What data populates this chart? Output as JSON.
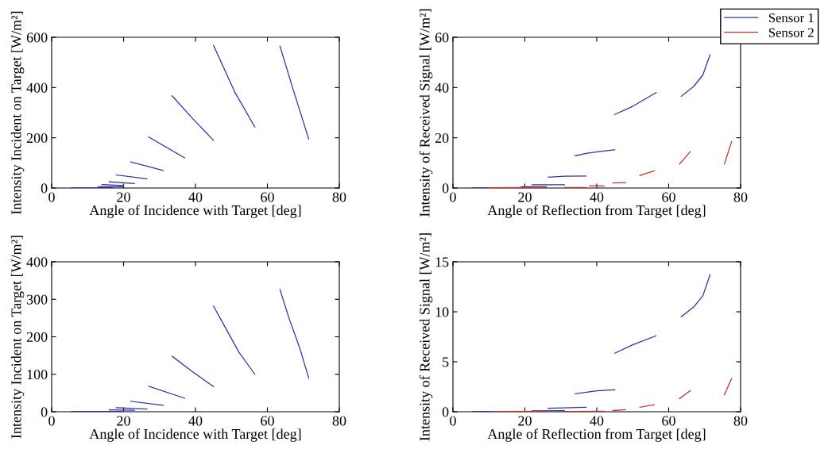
{
  "chart_data": [
    {
      "type": "line",
      "xlabel": "Angle of Incidence with Target [deg]",
      "ylabel": "Intensity Incident on Target [W/m²]",
      "xlim": [
        0,
        80
      ],
      "xticks": [
        0,
        20,
        40,
        60,
        80
      ],
      "ylim": [
        0,
        600
      ],
      "yticks": [
        0,
        200,
        400,
        600
      ],
      "grid": false,
      "legend": false,
      "series": [
        {
          "color": "#3030a0",
          "x": [
            5.5,
            17,
            null,
            13,
            20,
            null,
            14,
            20,
            null,
            16,
            23,
            null,
            18,
            26.5,
            null,
            22,
            31,
            null,
            27,
            37,
            null,
            33.5,
            39,
            45,
            null,
            45,
            51,
            56.5,
            null,
            63.5,
            67,
            71.5
          ],
          "values": [
            1,
            1,
            null,
            5,
            5,
            null,
            14,
            10,
            null,
            25,
            18,
            null,
            52,
            37,
            null,
            104,
            70,
            null,
            203,
            120,
            null,
            367,
            280,
            190,
            null,
            568,
            380,
            243,
            null,
            565,
            400,
            195
          ]
        }
      ]
    },
    {
      "type": "line",
      "xlabel": "Angle of Reflection from Target [deg]",
      "ylabel": "Intensity of Received Signal [W/m²]",
      "xlim": [
        0,
        80
      ],
      "xticks": [
        0,
        20,
        40,
        60,
        80
      ],
      "ylim": [
        0,
        60
      ],
      "yticks": [
        0,
        20,
        40,
        60
      ],
      "grid": false,
      "legend": "top right",
      "series": [
        {
          "name": "Sensor 1",
          "color": "#3030a0",
          "x": [
            5.5,
            11,
            null,
            19,
            26,
            null,
            22,
            31,
            null,
            26.5,
            31,
            37,
            null,
            34,
            37,
            41,
            45,
            null,
            45,
            50,
            56.5,
            null,
            63.5,
            67,
            69.5,
            71.5
          ],
          "values": [
            0.1,
            0.1,
            null,
            0.5,
            0.5,
            null,
            1.3,
            1.3,
            null,
            4.3,
            4.7,
            4.8,
            null,
            12.8,
            13.8,
            14.6,
            15.2,
            null,
            29.3,
            32.5,
            38,
            null,
            36.5,
            40.5,
            45,
            53
          ]
        },
        {
          "name": "Sensor 2",
          "color": "#c03030",
          "x": [
            10,
            26,
            null,
            31,
            37,
            null,
            38,
            42,
            null,
            44.5,
            48,
            null,
            52,
            56,
            null,
            63,
            66,
            null,
            75.5,
            77.5
          ],
          "values": [
            0.1,
            0.3,
            null,
            0.2,
            0.2,
            null,
            0.9,
            0.8,
            null,
            2,
            2.2,
            null,
            5,
            6.8,
            null,
            9.5,
            14.5,
            null,
            9.5,
            18.5
          ]
        }
      ]
    },
    {
      "type": "line",
      "xlabel": "Angle of Incidence with Target [deg]",
      "ylabel": "Intensity Incident on Target [W/m²]",
      "xlim": [
        0,
        80
      ],
      "xticks": [
        0,
        20,
        40,
        60,
        80
      ],
      "ylim": [
        0,
        400
      ],
      "yticks": [
        0,
        100,
        200,
        300,
        400
      ],
      "grid": false,
      "legend": false,
      "series": [
        {
          "color": "#3030a0",
          "x": [
            5.5,
            20,
            null,
            16,
            23,
            null,
            18,
            26.5,
            null,
            22,
            31,
            null,
            27,
            37,
            null,
            33.5,
            39,
            45,
            null,
            45,
            48,
            52,
            56.5,
            null,
            63.5,
            66,
            69,
            71.5
          ],
          "values": [
            1,
            1,
            null,
            5,
            4,
            null,
            11,
            7,
            null,
            28,
            17,
            null,
            68,
            36,
            null,
            148,
            108,
            67,
            null,
            282,
            230,
            160,
            100,
            null,
            326,
            250,
            170,
            90
          ]
        }
      ]
    },
    {
      "type": "line",
      "xlabel": "Angle of Reflection from Target [deg]",
      "ylabel": "Intensity of Received Signal [W/m²]",
      "xlim": [
        0,
        80
      ],
      "xticks": [
        0,
        20,
        40,
        60,
        80
      ],
      "ylim": [
        0,
        15
      ],
      "yticks": [
        0,
        5,
        10,
        15
      ],
      "grid": false,
      "legend": false,
      "series": [
        {
          "color": "#3030a0",
          "x": [
            5.5,
            11,
            null,
            22,
            31,
            null,
            26.5,
            37,
            null,
            34,
            40,
            45,
            null,
            45,
            50,
            56.5,
            null,
            63.5,
            67,
            69.5,
            71.5
          ],
          "values": [
            0.02,
            0.02,
            null,
            0.08,
            0.1,
            null,
            0.35,
            0.45,
            null,
            1.8,
            2.1,
            2.2,
            null,
            5.85,
            6.7,
            7.6,
            null,
            9.5,
            10.5,
            11.6,
            13.7
          ]
        },
        {
          "color": "#c03030",
          "x": [
            11,
            26,
            null,
            31,
            42,
            null,
            44.5,
            48,
            null,
            52,
            56,
            null,
            63,
            66,
            null,
            75.5,
            77.5
          ],
          "values": [
            0.02,
            0.05,
            null,
            0.03,
            0.04,
            null,
            0.12,
            0.2,
            null,
            0.45,
            0.7,
            null,
            1.3,
            2.1,
            null,
            1.7,
            3.3
          ]
        }
      ]
    }
  ]
}
